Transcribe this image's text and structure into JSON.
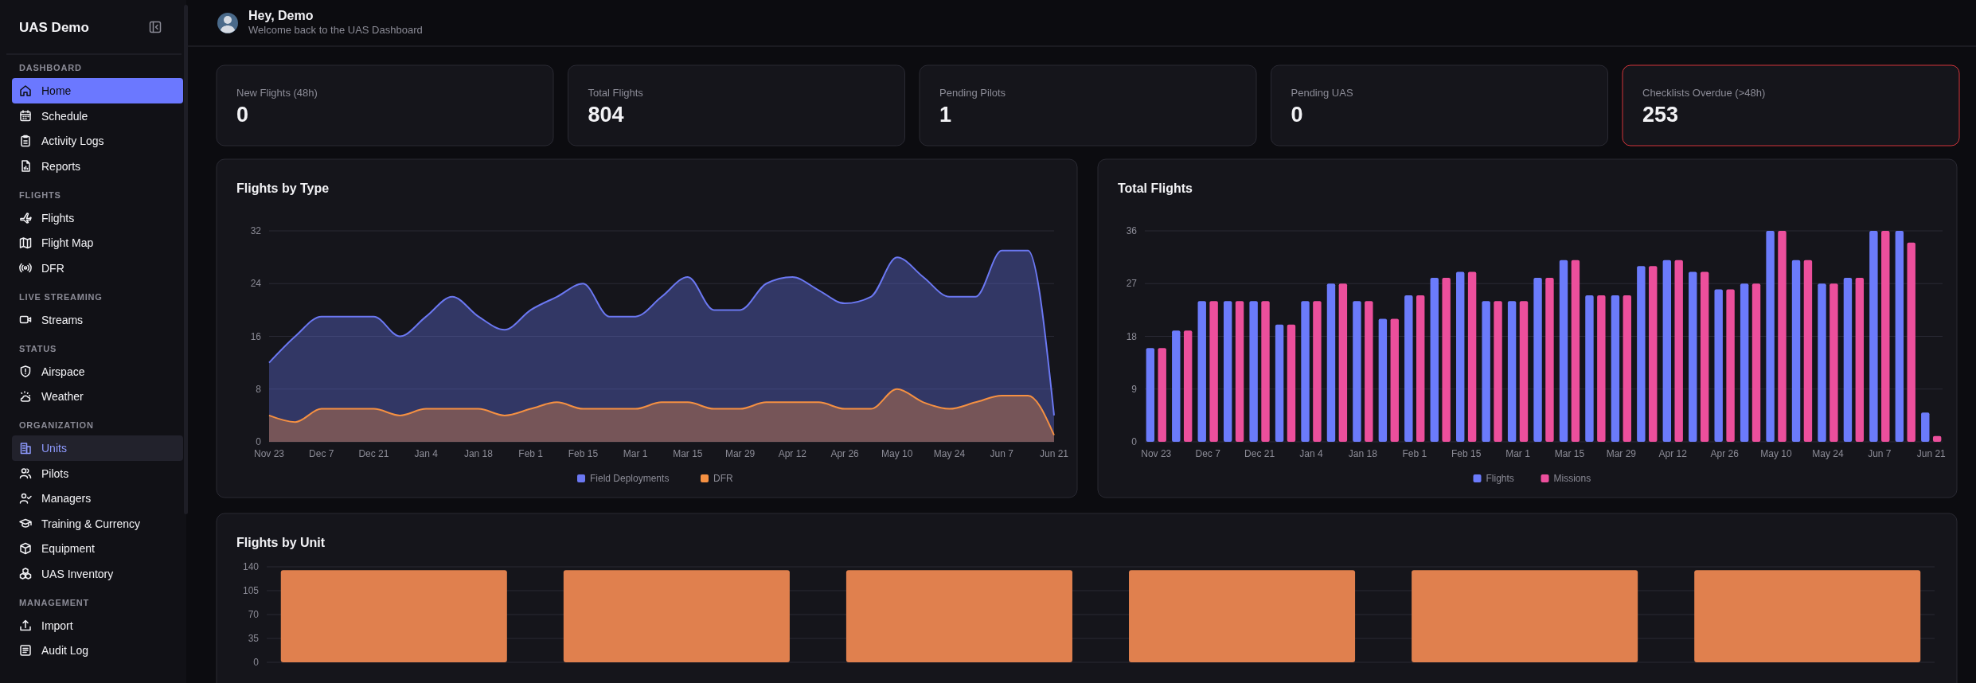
{
  "chart_data": [
    {
      "type": "other",
      "title": "UAS Demo"
    },
    {
      "type": "other",
      "title": "DASHBOARD",
      "annotations": [
        "Home",
        "Schedule",
        "Activity Logs",
        "Reports"
      ]
    },
    {
      "type": "other",
      "title": "FLIGHTS",
      "annotations": [
        "Flights",
        "Flight Map",
        "DFR"
      ]
    },
    {
      "type": "other",
      "title": "LIVE STREAMING",
      "annotations": [
        "Streams"
      ]
    },
    {
      "type": "other",
      "title": "STATUS",
      "annotations": [
        "Airspace",
        "Weather"
      ]
    },
    {
      "type": "other",
      "title": "ORGANIZATION",
      "annotations": [
        "Units",
        "Pilots",
        "Managers",
        "Training & Currency",
        "Equipment",
        "UAS Inventory"
      ]
    },
    {
      "type": "other",
      "title": "MANAGEMENT",
      "annotations": [
        "Import",
        "Audit Log"
      ]
    },
    {
      "type": "other",
      "title": "Hey, Demo",
      "subtitle": "Welcome back to the UAS Dashboard"
    },
    {
      "type": "other",
      "title": "New Flights (48h)",
      "annotations": [
        "0"
      ]
    },
    {
      "type": "other",
      "title": "Total Flights",
      "annotations": [
        "804"
      ]
    },
    {
      "type": "other",
      "title": "Pending Pilots",
      "annotations": [
        "1"
      ]
    },
    {
      "type": "other",
      "title": "Pending UAS",
      "annotations": [
        "0"
      ]
    },
    {
      "type": "other",
      "title": "Checklists Overdue (>48h)",
      "annotations": [
        "253"
      ]
    },
    {
      "type": "area",
      "title": "Flights by Type",
      "categories": [
        "Nov 23",
        null,
        "Dec 7",
        null,
        "Dec 21",
        null,
        "Jan 4",
        null,
        "Jan 18",
        null,
        "Feb 1",
        null,
        "Feb 15",
        null,
        "Mar 1",
        null,
        "Mar 15",
        null,
        "Mar 29",
        null,
        "Apr 12",
        null,
        "Apr 26",
        null,
        "May 10",
        null,
        "May 24",
        null,
        "Jun 7",
        null,
        "Jun 21"
      ],
      "series": [
        {
          "name": "Field Deployments",
          "color": "#6b78f2",
          "values": [
            12,
            16,
            19,
            19,
            19,
            16,
            19,
            22,
            19,
            17,
            20,
            22,
            24,
            19,
            19,
            22,
            25,
            20,
            20,
            24,
            25,
            23,
            21,
            22,
            28,
            25,
            22,
            22,
            29,
            29,
            4
          ]
        },
        {
          "name": "DFR",
          "color": "#f59042",
          "values": [
            4,
            3,
            5,
            5,
            5,
            4,
            5,
            5,
            5,
            4,
            5,
            6,
            5,
            5,
            5,
            6,
            6,
            5,
            5,
            6,
            6,
            6,
            5,
            5,
            8,
            6,
            5,
            6,
            7,
            7,
            1
          ]
        }
      ],
      "ylim": [
        0,
        32
      ],
      "yticks": [
        0,
        8,
        16,
        24,
        32
      ],
      "grid": "y",
      "legend": "bottom"
    },
    {
      "type": "bar",
      "title": "Total Flights",
      "categories": [
        "Nov 23",
        null,
        "Dec 7",
        null,
        "Dec 21",
        null,
        "Jan 4",
        null,
        "Jan 18",
        null,
        "Feb 1",
        null,
        "Feb 15",
        null,
        "Mar 1",
        null,
        "Mar 15",
        null,
        "Mar 29",
        null,
        "Apr 12",
        null,
        "Apr 26",
        null,
        "May 10",
        null,
        "May 24",
        null,
        "Jun 7",
        null,
        "Jun 21"
      ],
      "series": [
        {
          "name": "Flights",
          "color": "#6b7bfb",
          "values": [
            16,
            19,
            24,
            24,
            24,
            20,
            24,
            27,
            24,
            21,
            25,
            28,
            29,
            24,
            24,
            28,
            31,
            25,
            25,
            30,
            31,
            29,
            26,
            27,
            36,
            31,
            27,
            28,
            36,
            36,
            5
          ]
        },
        {
          "name": "Missions",
          "color": "#ec4f9c",
          "values": [
            16,
            19,
            24,
            24,
            24,
            20,
            24,
            27,
            24,
            21,
            25,
            28,
            29,
            24,
            24,
            28,
            31,
            25,
            25,
            30,
            31,
            29,
            26,
            27,
            36,
            31,
            27,
            28,
            36,
            34,
            1
          ]
        }
      ],
      "ylim": [
        0,
        36
      ],
      "yticks": [
        0,
        9,
        18,
        27,
        36
      ],
      "grid": "y",
      "legend": "bottom"
    },
    {
      "type": "bar",
      "title": "Flights by Unit",
      "categories": [
        null,
        null,
        null,
        null,
        null,
        null
      ],
      "values": [
        135,
        135,
        135,
        135,
        135,
        135
      ],
      "color": "#e0804e",
      "ylim": [
        0,
        140
      ],
      "yticks": [
        0,
        35,
        70,
        105,
        140
      ],
      "grid": "y"
    }
  ]
}
